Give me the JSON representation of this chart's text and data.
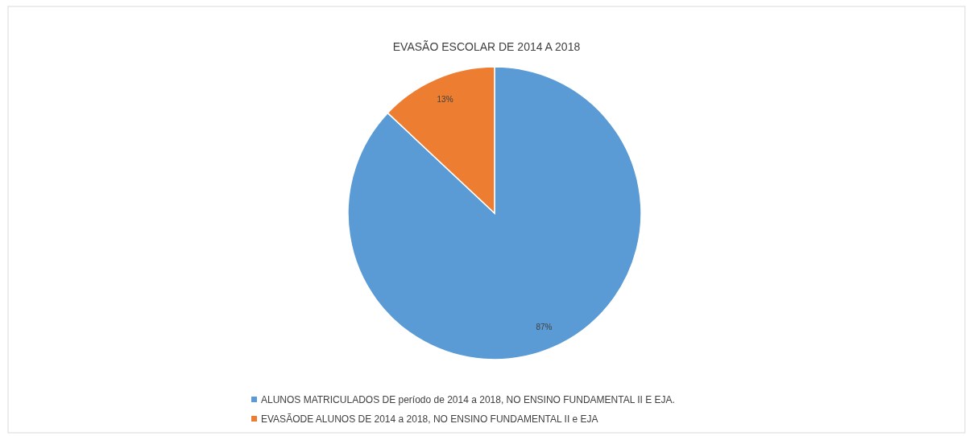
{
  "chart_data": {
    "type": "pie",
    "title": "EVASÃO ESCOLAR  DE 2014 A 2018",
    "categories": [
      "ALUNOS MATRICULADOS DE período de 2014 a 2018, NO ENSINO FUNDAMENTAL II E EJA.",
      "EVASÃODE ALUNOS DE 2014 a 2018, NO ENSINO FUNDAMENTAL II e EJA"
    ],
    "values": [
      87,
      13
    ],
    "colors": [
      "#5b9bd5",
      "#ed7d31"
    ],
    "value_labels": [
      "87%",
      "13%"
    ],
    "legend": "bottom"
  }
}
